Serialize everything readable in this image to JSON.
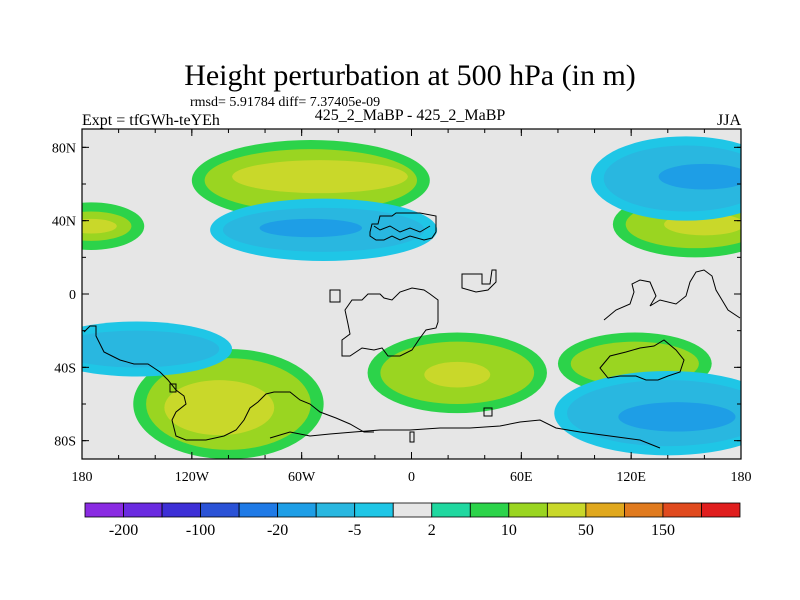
{
  "chart_data": {
    "type": "heatmap",
    "title": "Height perturbation at 500 hPa (in m)",
    "subtitle": "rmsd= 5.91784 diff= 7.37405e-09",
    "center_label": "425_2_MaBP - 425_2_MaBP",
    "left_label": "Expt = tfGWh-teYEh",
    "right_label": "JJA",
    "x_range": [
      -180,
      180
    ],
    "y_range": [
      -90,
      90
    ],
    "x_ticks": [
      {
        "value": -180,
        "label": "180"
      },
      {
        "value": -120,
        "label": "120W"
      },
      {
        "value": -60,
        "label": "60W"
      },
      {
        "value": 0,
        "label": "0"
      },
      {
        "value": 60,
        "label": "60E"
      },
      {
        "value": 120,
        "label": "120E"
      },
      {
        "value": 180,
        "label": "180"
      }
    ],
    "y_ticks": [
      {
        "value": 80,
        "label": "80N"
      },
      {
        "value": 40,
        "label": "40N"
      },
      {
        "value": 0,
        "label": "0"
      },
      {
        "value": -40,
        "label": "40S"
      },
      {
        "value": -80,
        "label": "80S"
      }
    ],
    "contour_levels": [
      -200,
      -150,
      -100,
      -50,
      -20,
      -10,
      -5,
      -2,
      2,
      5,
      10,
      20,
      50,
      100,
      150,
      200
    ],
    "colorbar_colors": [
      "#8a2be2",
      "#6a2ae0",
      "#3d2fd6",
      "#2a52d6",
      "#1f7ae6",
      "#1e9ee6",
      "#29b7e0",
      "#1fc6e6",
      "#e6e6e6",
      "#20d8a0",
      "#2cd34a",
      "#9ad521",
      "#c9d82a",
      "#e0a81e",
      "#e07a1e",
      "#e04a1e",
      "#e01e1e"
    ],
    "colorbar_labels": [
      {
        "value": -200,
        "label": "-200"
      },
      {
        "value": -100,
        "label": "-100"
      },
      {
        "value": -20,
        "label": "-20"
      },
      {
        "value": -5,
        "label": "-5"
      },
      {
        "value": 2,
        "label": "2"
      },
      {
        "value": 10,
        "label": "10"
      },
      {
        "value": 50,
        "label": "50"
      },
      {
        "value": 150,
        "label": "150"
      }
    ],
    "regions": [
      {
        "name": "nh-high-atlantic-pos",
        "lon": -55,
        "lat": 62,
        "rx": 58,
        "ry": 17,
        "level": 10
      },
      {
        "name": "nh-high-atlantic-pos-core",
        "lon": -50,
        "lat": 64,
        "rx": 48,
        "ry": 9,
        "level": 20
      },
      {
        "name": "nh-midlat-west-pos",
        "lon": -175,
        "lat": 37,
        "rx": 22,
        "ry": 8,
        "level": 10
      },
      {
        "name": "nh-midlat-west-pos-core",
        "lon": -175,
        "lat": 37,
        "rx": 14,
        "ry": 4,
        "level": 20
      },
      {
        "name": "nh-midlat-atlantic-neg",
        "lon": -48,
        "lat": 35,
        "rx": 55,
        "ry": 12,
        "level": -10
      },
      {
        "name": "nh-midlat-atlantic-neg-core",
        "lon": -55,
        "lat": 36,
        "rx": 28,
        "ry": 5,
        "level": -20
      },
      {
        "name": "nh-midlat-east-pos",
        "lon": 155,
        "lat": 38,
        "rx": 38,
        "ry": 13,
        "level": 10
      },
      {
        "name": "nh-midlat-east-pos-core",
        "lon": 160,
        "lat": 38,
        "rx": 22,
        "ry": 6,
        "level": 20
      },
      {
        "name": "nh-high-east-neg",
        "lon": 150,
        "lat": 63,
        "rx": 45,
        "ry": 18,
        "level": -10
      },
      {
        "name": "nh-high-east-neg-core",
        "lon": 160,
        "lat": 64,
        "rx": 25,
        "ry": 7,
        "level": -20
      },
      {
        "name": "sh-pacific-pos",
        "lon": -100,
        "lat": -60,
        "rx": 45,
        "ry": 25,
        "level": 10
      },
      {
        "name": "sh-pacific-pos-core",
        "lon": -105,
        "lat": -62,
        "rx": 30,
        "ry": 15,
        "level": 20
      },
      {
        "name": "sh-south-atlantic-pos",
        "lon": 25,
        "lat": -43,
        "rx": 42,
        "ry": 17,
        "level": 10
      },
      {
        "name": "sh-south-atlantic-pos-core",
        "lon": 25,
        "lat": -44,
        "rx": 18,
        "ry": 7,
        "level": 20
      },
      {
        "name": "sh-indian-pos",
        "lon": 122,
        "lat": -38,
        "rx": 35,
        "ry": 12,
        "level": 10
      },
      {
        "name": "sh-midlat-west-neg",
        "lon": -150,
        "lat": -30,
        "rx": 45,
        "ry": 10,
        "level": -10
      },
      {
        "name": "sh-high-east-neg",
        "lon": 140,
        "lat": -65,
        "rx": 55,
        "ry": 18,
        "level": -10
      },
      {
        "name": "sh-high-east-neg-core",
        "lon": 145,
        "lat": -67,
        "rx": 32,
        "ry": 8,
        "level": -20
      }
    ]
  }
}
